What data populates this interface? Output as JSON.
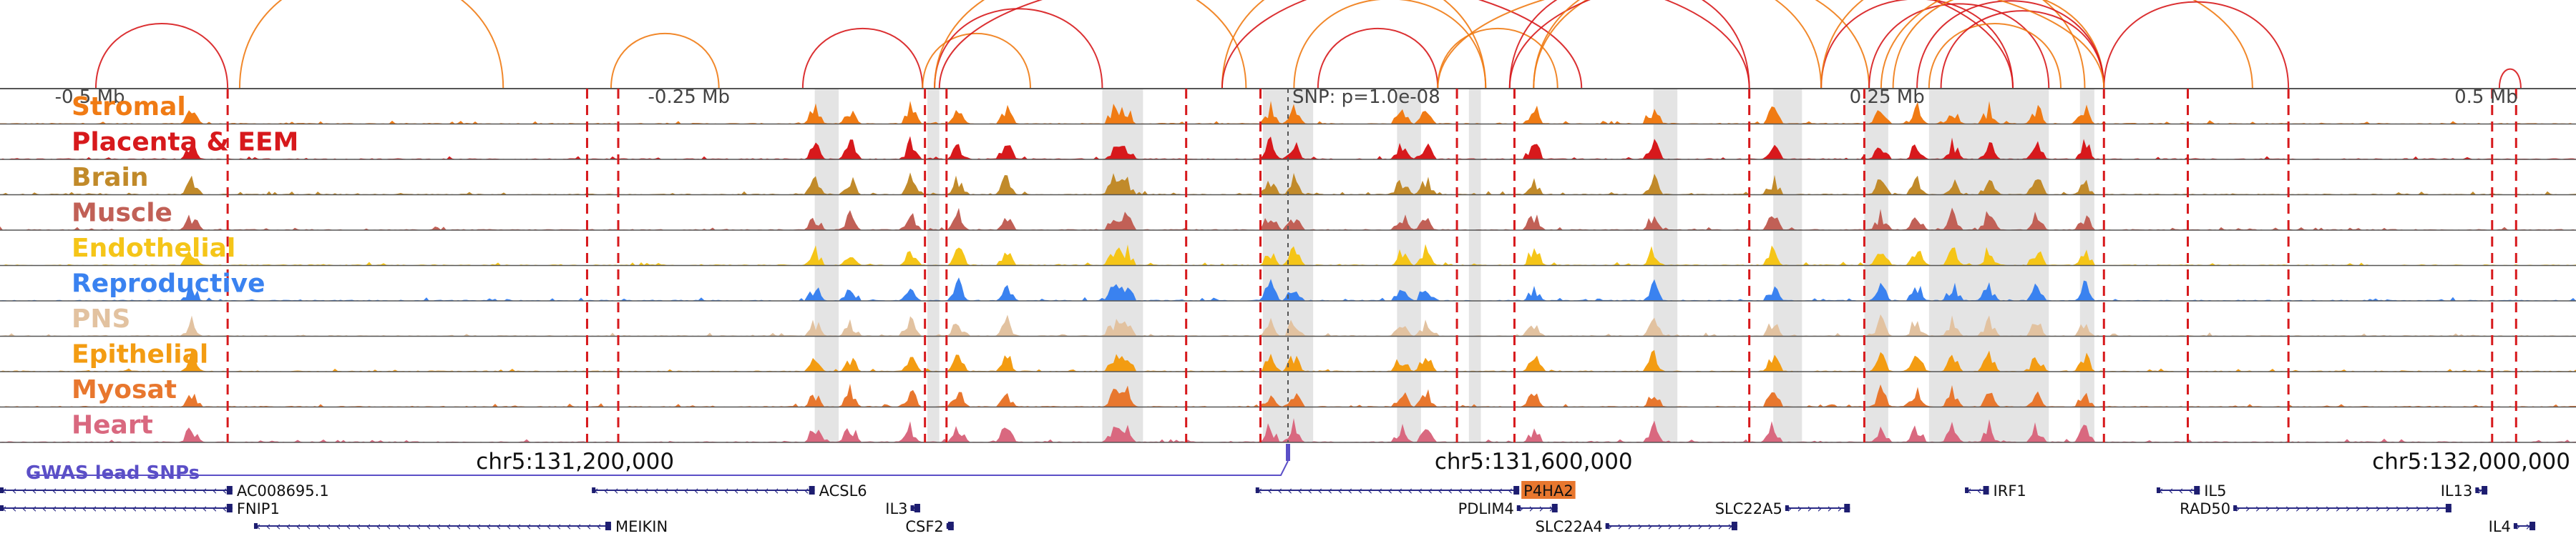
{
  "locus": {
    "chrom": "chr5",
    "start": 130960000,
    "end": 132035000,
    "coordinate_labels": [
      {
        "text": "chr5:131,200,000",
        "pos": 131200000
      },
      {
        "text": "chr5:131,600,000",
        "pos": 131600000
      },
      {
        "text": "chr5:132,000,000",
        "pos": 132000000
      }
    ]
  },
  "axis_labels": [
    {
      "text": "-0.5 Mb",
      "offset_mb": -0.5
    },
    {
      "text": "-0.25 Mb",
      "offset_mb": -0.25
    },
    {
      "text": "0.25 Mb",
      "offset_mb": 0.25
    },
    {
      "text": "0.5 Mb",
      "offset_mb": 0.5
    }
  ],
  "snp": {
    "label": "SNP: p=1.0e-08",
    "pos": 131497500,
    "gwas_track_label": "GWAS lead SNPs",
    "color": "#5b4fc7"
  },
  "tracks": [
    {
      "name": "Stromal",
      "color": "#f07b14"
    },
    {
      "name": "Placenta & EEM",
      "color": "#d7191c"
    },
    {
      "name": "Brain",
      "color": "#c18a2a"
    },
    {
      "name": "Muscle",
      "color": "#c16056"
    },
    {
      "name": "Endothelial",
      "color": "#f5c518"
    },
    {
      "name": "Reproductive",
      "color": "#3a82f0"
    },
    {
      "name": "PNS",
      "color": "#e2c2a0"
    },
    {
      "name": "Epithelial",
      "color": "#f39c12"
    },
    {
      "name": "Myosat",
      "color": "#e8772e"
    },
    {
      "name": "Heart",
      "color": "#d9687f"
    }
  ],
  "highlight_regions": [
    [
      131300000,
      131310000
    ],
    [
      131347000,
      131352000
    ],
    [
      131420000,
      131437000
    ],
    [
      131487000,
      131508000
    ],
    [
      131543000,
      131553000
    ],
    [
      131573000,
      131578000
    ],
    [
      131650000,
      131660000
    ],
    [
      131700000,
      131712000
    ],
    [
      131738000,
      131748000
    ],
    [
      131765000,
      131815000
    ],
    [
      131828000,
      131834000
    ]
  ],
  "boundary_lines": [
    131055000,
    131205000,
    131218000,
    131346000,
    131355000,
    131455000,
    131486000,
    131568000,
    131592000,
    131690000,
    131738000,
    131838000,
    131873000,
    131915000,
    132000000,
    132010000
  ],
  "genes": [
    {
      "name": "AC008695.1",
      "start": 130960000,
      "end": 131057000,
      "strand": "-",
      "row": 0,
      "label_side": "right"
    },
    {
      "name": "ACSL6",
      "start": 131207000,
      "end": 131300000,
      "strand": "-",
      "row": 0,
      "label_side": "right"
    },
    {
      "name": "P4HA2",
      "start": 131484000,
      "end": 131594000,
      "strand": "-",
      "row": 0,
      "label_side": "right",
      "highlight": true
    },
    {
      "name": "IRF1",
      "start": 131780000,
      "end": 131790000,
      "strand": "-",
      "row": 0,
      "label_side": "right"
    },
    {
      "name": "IL5",
      "start": 131860000,
      "end": 131878000,
      "strand": "-",
      "row": 0,
      "label_side": "right"
    },
    {
      "name": "IL13",
      "start": 131993000,
      "end": 131998000,
      "strand": "+",
      "row": 0,
      "label_side": "left"
    },
    {
      "name": "FNIP1",
      "start": 130960000,
      "end": 131057000,
      "strand": "-",
      "row": 1,
      "label_side": "right"
    },
    {
      "name": "IL3",
      "start": 131340000,
      "end": 131344000,
      "strand": "+",
      "row": 1,
      "label_side": "left"
    },
    {
      "name": "PDLIM4",
      "start": 131593000,
      "end": 131610000,
      "strand": "+",
      "row": 1,
      "label_side": "left"
    },
    {
      "name": "SLC22A5",
      "start": 131705000,
      "end": 131732000,
      "strand": "+",
      "row": 1,
      "label_side": "left"
    },
    {
      "name": "RAD50",
      "start": 131892000,
      "end": 131983000,
      "strand": "+",
      "row": 1,
      "label_side": "left"
    },
    {
      "name": "MEIKIN",
      "start": 131066000,
      "end": 131215000,
      "strand": "-",
      "row": 2,
      "label_side": "right"
    },
    {
      "name": "CSF2",
      "start": 131355000,
      "end": 131358000,
      "strand": "+",
      "row": 2,
      "label_side": "left"
    },
    {
      "name": "SLC22A4",
      "start": 131630000,
      "end": 131685000,
      "strand": "+",
      "row": 2,
      "label_side": "left"
    },
    {
      "name": "IL4",
      "start": 132009000,
      "end": 132018000,
      "strand": "+",
      "row": 2,
      "label_side": "left"
    }
  ],
  "peak_centers": [
    131040000,
    131300000,
    131315000,
    131340000,
    131360000,
    131380000,
    131425000,
    131430000,
    131490000,
    131500000,
    131545000,
    131555000,
    131600000,
    131650000,
    131700000,
    131745000,
    131760000,
    131775000,
    131790000,
    131810000,
    131830000
  ],
  "loops": [
    [
      131000000,
      131055000
    ],
    [
      131215000,
      131260000
    ],
    [
      131295000,
      131345000
    ],
    [
      131345000,
      131390000
    ],
    [
      131350000,
      131420000
    ],
    [
      131350000,
      131480000
    ],
    [
      131352000,
      131620000
    ],
    [
      131470000,
      131580000
    ],
    [
      131470000,
      131690000
    ],
    [
      131500000,
      131580000
    ],
    [
      131510000,
      131560000
    ],
    [
      131560000,
      131610000
    ],
    [
      131590000,
      131690000
    ],
    [
      131600000,
      131740000
    ],
    [
      131590000,
      131800000
    ],
    [
      131600000,
      131720000
    ],
    [
      131720000,
      131800000
    ],
    [
      131720000,
      131830000
    ],
    [
      131740000,
      131815000
    ],
    [
      131750000,
      131838000
    ],
    [
      131760000,
      131838000
    ],
    [
      131765000,
      131820000
    ],
    [
      131770000,
      131838000
    ],
    [
      131745000,
      131900000
    ],
    [
      131838000,
      131915000
    ],
    [
      131560000,
      131838000
    ],
    [
      132003000,
      132012000
    ],
    [
      131060000,
      131170000
    ]
  ],
  "loop_colors": [
    "#d7191c",
    "#f07b14"
  ]
}
